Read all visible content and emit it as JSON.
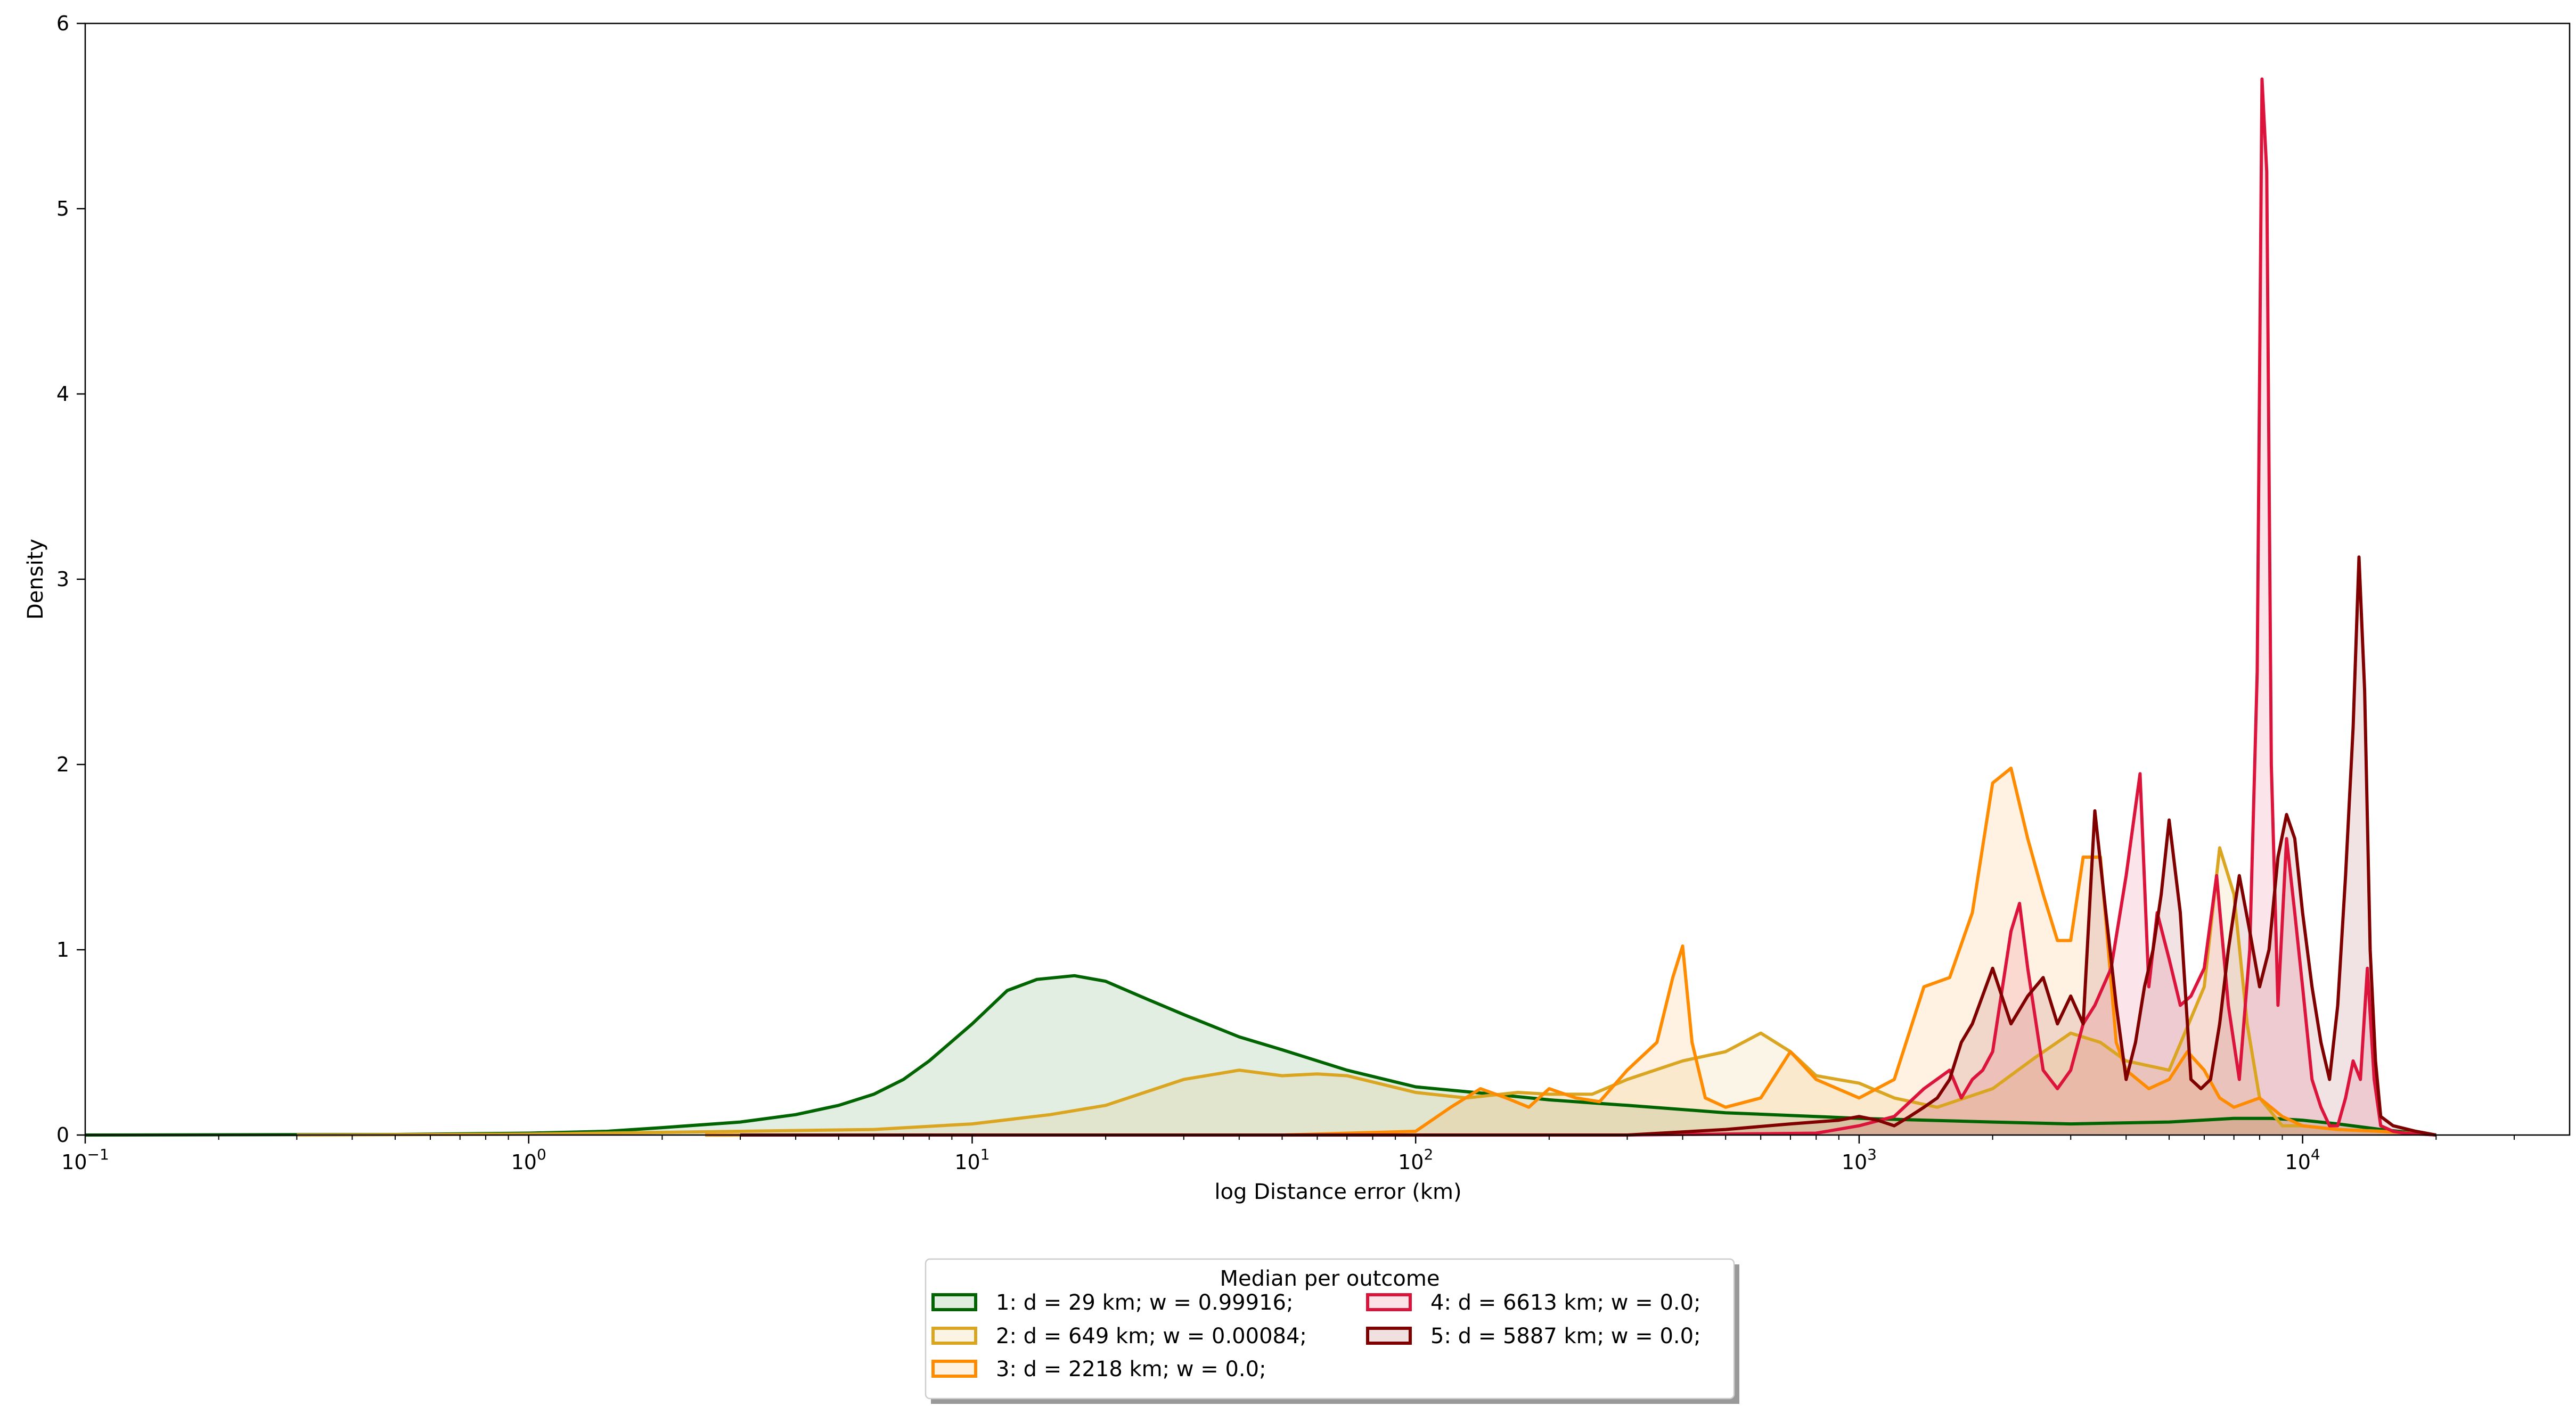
{
  "chart_data": {
    "type": "area",
    "title": "",
    "xlabel": "log Distance error (km)",
    "ylabel": "Density",
    "xscale": "log",
    "xlim": [
      0.1,
      40000
    ],
    "ylim": [
      0,
      6
    ],
    "x_ticks": [
      {
        "value": 0.1,
        "base": "10",
        "exp": "−1"
      },
      {
        "value": 1,
        "base": "10",
        "exp": "0"
      },
      {
        "value": 10,
        "base": "10",
        "exp": "1"
      },
      {
        "value": 100,
        "base": "10",
        "exp": "2"
      },
      {
        "value": 1000,
        "base": "10",
        "exp": "3"
      },
      {
        "value": 10000,
        "base": "10",
        "exp": "4"
      }
    ],
    "y_ticks": [
      "0",
      "1",
      "2",
      "3",
      "4",
      "5",
      "6"
    ],
    "grid": false,
    "legend": {
      "title": "Median per outcome",
      "placement": "bottom-center, below plot, two columns",
      "entries": [
        "1: d = 29 km;  w = 0.99916;",
        "2: d = 649 km;  w = 0.00084;",
        "3: d = 2218 km;  w = 0.0;",
        "4: d = 6613 km;  w = 0.0;",
        "5: d = 5887 km;  w = 0.0;"
      ]
    },
    "series": [
      {
        "name": "1: d = 29 km;  w = 0.99916;",
        "color": "#006400",
        "x": [
          0.1,
          0.5,
          1,
          1.5,
          2,
          3,
          4,
          5,
          6,
          7,
          8,
          10,
          12,
          14,
          17,
          20,
          25,
          30,
          40,
          50,
          70,
          100,
          150,
          200,
          300,
          500,
          800,
          1000,
          2000,
          3000,
          5000,
          7000,
          8500,
          10000,
          12000,
          15000,
          20000
        ],
        "y": [
          0.0,
          0.003,
          0.01,
          0.02,
          0.04,
          0.07,
          0.11,
          0.16,
          0.22,
          0.3,
          0.4,
          0.6,
          0.78,
          0.84,
          0.86,
          0.83,
          0.73,
          0.65,
          0.53,
          0.46,
          0.35,
          0.26,
          0.22,
          0.19,
          0.16,
          0.12,
          0.1,
          0.09,
          0.07,
          0.06,
          0.07,
          0.09,
          0.09,
          0.08,
          0.06,
          0.03,
          0.0
        ]
      },
      {
        "name": "2: d = 649 km;  w = 0.00084;",
        "color": "#DAA520",
        "x": [
          0.3,
          1,
          3,
          6,
          10,
          15,
          20,
          30,
          40,
          50,
          60,
          70,
          100,
          130,
          170,
          200,
          250,
          300,
          400,
          500,
          600,
          700,
          800,
          1000,
          1200,
          1500,
          2000,
          2500,
          3000,
          3500,
          4000,
          5000,
          6000,
          6500,
          7000,
          7500,
          8000,
          9000,
          10000,
          12000,
          15000,
          20000
        ],
        "y": [
          0.0,
          0.005,
          0.02,
          0.03,
          0.06,
          0.11,
          0.16,
          0.3,
          0.35,
          0.32,
          0.33,
          0.32,
          0.23,
          0.2,
          0.23,
          0.22,
          0.22,
          0.3,
          0.4,
          0.45,
          0.55,
          0.45,
          0.32,
          0.28,
          0.2,
          0.15,
          0.25,
          0.42,
          0.55,
          0.5,
          0.4,
          0.35,
          0.8,
          1.55,
          1.3,
          0.6,
          0.2,
          0.05,
          0.05,
          0.03,
          0.02,
          0.0
        ]
      },
      {
        "name": "3: d = 2218 km;  w = 0.0;",
        "color": "#FF8C00",
        "x": [
          2.5,
          10,
          50,
          100,
          120,
          140,
          160,
          180,
          200,
          230,
          260,
          300,
          350,
          380,
          400,
          420,
          450,
          500,
          600,
          700,
          800,
          1000,
          1200,
          1400,
          1600,
          1800,
          2000,
          2200,
          2400,
          2600,
          2800,
          3000,
          3200,
          3500,
          3800,
          4000,
          4500,
          5000,
          5500,
          6000,
          6500,
          7000,
          8000,
          9000,
          10000,
          12000,
          15000,
          20000
        ],
        "y": [
          0.0,
          0.0,
          0.0,
          0.02,
          0.15,
          0.25,
          0.2,
          0.15,
          0.25,
          0.2,
          0.18,
          0.35,
          0.5,
          0.85,
          1.02,
          0.5,
          0.2,
          0.15,
          0.2,
          0.45,
          0.3,
          0.2,
          0.3,
          0.8,
          0.85,
          1.2,
          1.9,
          1.98,
          1.6,
          1.3,
          1.05,
          1.05,
          1.5,
          1.5,
          0.5,
          0.35,
          0.25,
          0.3,
          0.45,
          0.35,
          0.2,
          0.15,
          0.2,
          0.1,
          0.05,
          0.03,
          0.02,
          0.0
        ]
      },
      {
        "name": "4: d = 6613 km;  w = 0.0;",
        "color": "#DC143C",
        "x": [
          300,
          800,
          1000,
          1200,
          1400,
          1600,
          1700,
          1800,
          1900,
          2000,
          2200,
          2300,
          2400,
          2600,
          2800,
          3000,
          3200,
          3400,
          3700,
          4000,
          4300,
          4500,
          4700,
          5000,
          5300,
          5600,
          6000,
          6400,
          6800,
          7200,
          7600,
          7900,
          8100,
          8300,
          8500,
          8800,
          9200,
          9600,
          10000,
          10500,
          11000,
          11500,
          12000,
          12500,
          13000,
          13500,
          14000,
          14500,
          15000,
          16000,
          17000,
          20000
        ],
        "y": [
          0.0,
          0.01,
          0.05,
          0.1,
          0.25,
          0.35,
          0.2,
          0.3,
          0.35,
          0.45,
          1.1,
          1.25,
          0.9,
          0.35,
          0.25,
          0.35,
          0.6,
          0.7,
          0.9,
          1.4,
          1.95,
          0.8,
          1.2,
          0.95,
          0.7,
          0.75,
          0.9,
          1.4,
          0.7,
          0.3,
          1.0,
          2.5,
          5.7,
          5.2,
          2.0,
          0.7,
          1.6,
          1.2,
          0.8,
          0.3,
          0.15,
          0.05,
          0.05,
          0.2,
          0.4,
          0.3,
          0.9,
          0.3,
          0.05,
          0.02,
          0.01,
          0.0
        ]
      },
      {
        "name": "5: d = 5887 km;  w = 0.0;",
        "color": "#800000",
        "x": [
          3,
          100,
          300,
          500,
          700,
          900,
          1000,
          1100,
          1200,
          1300,
          1400,
          1500,
          1600,
          1700,
          1800,
          2000,
          2200,
          2400,
          2600,
          2800,
          3000,
          3200,
          3400,
          3600,
          3800,
          4000,
          4200,
          4400,
          4600,
          4800,
          5000,
          5300,
          5600,
          5900,
          6200,
          6500,
          6800,
          7200,
          7600,
          8000,
          8400,
          8800,
          9200,
          9600,
          10000,
          10500,
          11000,
          11500,
          12000,
          12500,
          13000,
          13400,
          13800,
          14200,
          14600,
          15000,
          16000,
          18000,
          20000
        ],
        "y": [
          0.0,
          0.0,
          0.0,
          0.03,
          0.06,
          0.08,
          0.1,
          0.08,
          0.05,
          0.1,
          0.15,
          0.2,
          0.3,
          0.5,
          0.6,
          0.9,
          0.6,
          0.75,
          0.85,
          0.6,
          0.75,
          0.6,
          1.75,
          1.2,
          0.7,
          0.3,
          0.5,
          0.8,
          1.0,
          1.3,
          1.7,
          1.2,
          0.3,
          0.25,
          0.3,
          0.6,
          1.0,
          1.4,
          1.1,
          0.8,
          1.0,
          1.5,
          1.73,
          1.6,
          1.2,
          0.8,
          0.5,
          0.3,
          0.7,
          1.4,
          2.2,
          3.12,
          2.4,
          1.0,
          0.4,
          0.1,
          0.05,
          0.02,
          0.0
        ]
      }
    ]
  }
}
